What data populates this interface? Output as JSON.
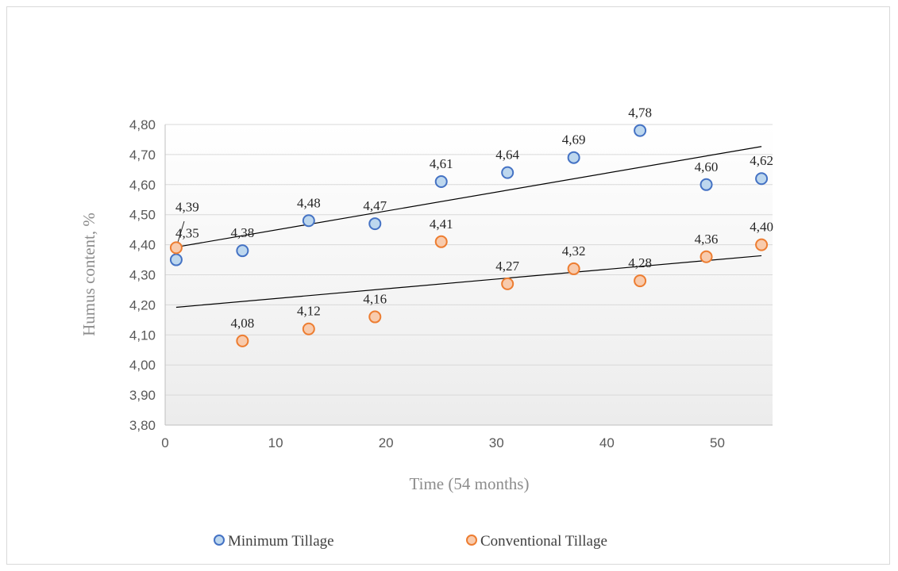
{
  "chart_data": {
    "type": "scatter",
    "title": "",
    "xlabel": "Time (54 months)",
    "ylabel": "Humus content, %",
    "xlim": [
      0,
      55
    ],
    "ylim": [
      3.8,
      4.8
    ],
    "xticks": [
      0,
      10,
      20,
      30,
      40,
      50
    ],
    "xtick_labels": [
      "0",
      "10",
      "20",
      "30",
      "40",
      "50"
    ],
    "yticks": [
      3.8,
      3.9,
      4.0,
      4.1,
      4.2,
      4.3,
      4.4,
      4.5,
      4.6,
      4.7,
      4.8
    ],
    "ytick_labels": [
      "3,80",
      "3,90",
      "4,00",
      "4,10",
      "4,20",
      "4,30",
      "4,40",
      "4,50",
      "4,60",
      "4,70",
      "4,80"
    ],
    "grid": "horizontal",
    "legend_position": "bottom",
    "trendline": "linear",
    "series": [
      {
        "name": "Minimum Tillage",
        "color": "#4472c4",
        "fill": "#bdd7ee",
        "x": [
          1,
          7,
          13,
          19,
          25,
          31,
          37,
          43,
          49,
          54
        ],
        "y": [
          4.35,
          4.38,
          4.48,
          4.47,
          4.61,
          4.64,
          4.69,
          4.78,
          4.6,
          4.62
        ],
        "labels": [
          "4,35",
          "4,38",
          "4,48",
          "4,47",
          "4,61",
          "4,64",
          "4,69",
          "4,78",
          "4,60",
          "4,62"
        ]
      },
      {
        "name": "Conventional Tillage",
        "color": "#ed7d31",
        "fill": "#f8cbad",
        "x": [
          1,
          7,
          13,
          19,
          25,
          31,
          37,
          43,
          49,
          54
        ],
        "y": [
          4.39,
          4.08,
          4.12,
          4.16,
          4.41,
          4.27,
          4.32,
          4.28,
          4.36,
          4.4
        ],
        "labels": [
          "4,39",
          "4,08",
          "4,12",
          "4,16",
          "4,41",
          "4,27",
          "4,32",
          "4,28",
          "4,36",
          "4,40"
        ]
      }
    ]
  }
}
